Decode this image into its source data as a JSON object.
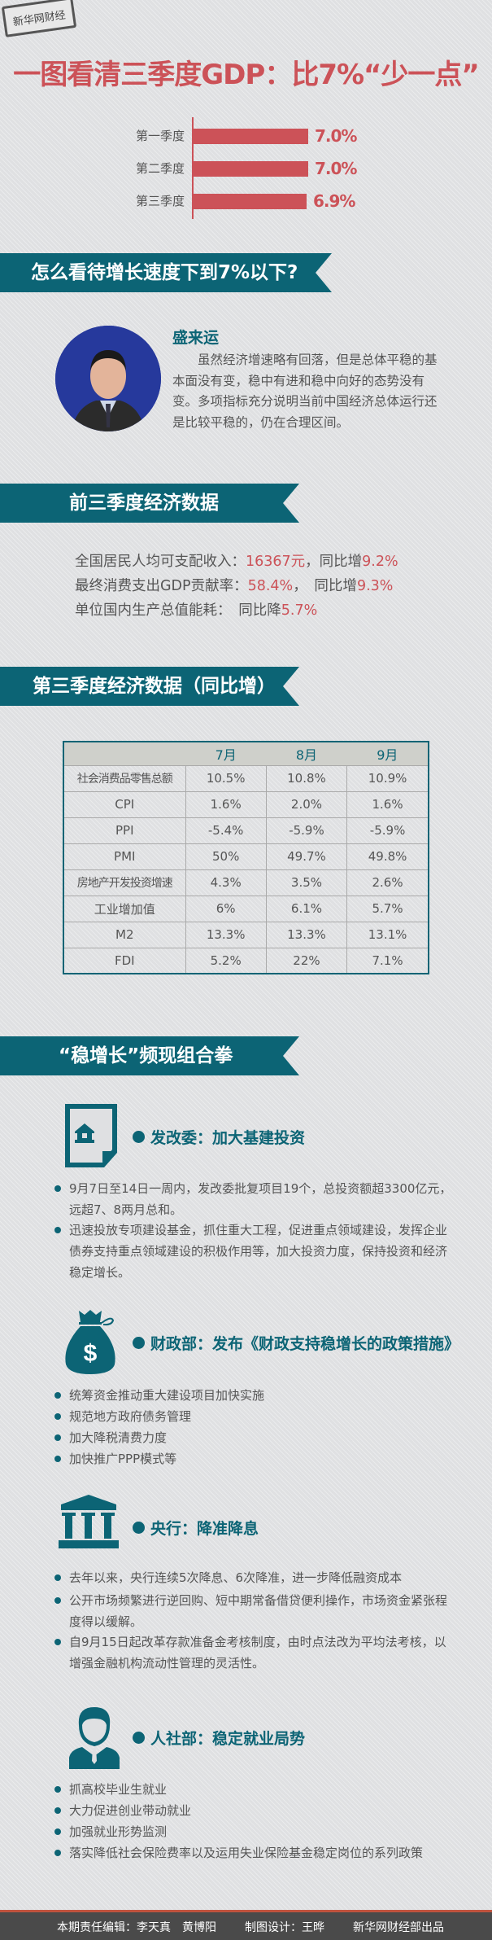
{
  "logo": {
    "text": "新华网财经"
  },
  "title": "一图看清三季度GDP：比7%“少一点”",
  "chart_data": {
    "type": "bar",
    "orientation": "horizontal",
    "categories": [
      "第一季度",
      "第二季度",
      "第三季度"
    ],
    "values": [
      7.0,
      7.0,
      6.9
    ],
    "labels": [
      "7.0%",
      "7.0%",
      "6.9%"
    ],
    "xlim": [
      0,
      7.0
    ],
    "color": "#cc5258"
  },
  "section1": {
    "title": "怎么看待增长速度下到7%以下?",
    "name": "盛来运",
    "text": "虽然经济增速略有回落，但是总体平稳的基本面没有变，稳中有进和稳中向好的态势没有变。多项指标充分说明当前中国经济总体运行还是比较平稳的，仍在合理区间。"
  },
  "section2": {
    "title": "前三季度经济数据",
    "lines": [
      {
        "label": "全国居民人均可支配收入：",
        "v1": "16367元",
        "mid": "，同比增",
        "v2": "9.2%"
      },
      {
        "label": "最终消费支出GDP贡献率：",
        "v1": "58.4%",
        "mid": "，　同比增",
        "v2": "9.3%"
      },
      {
        "label": "单位国内生产总值能耗：",
        "v1": "",
        "mid": "　同比降",
        "v2": "5.7%"
      }
    ]
  },
  "section3": {
    "title": "第三季度经济数据（同比增）",
    "headers": [
      "",
      "7月",
      "8月",
      "9月"
    ],
    "rows": [
      [
        "社会消费品零售总额",
        "10.5%",
        "10.8%",
        "10.9%"
      ],
      [
        "CPI",
        "1.6%",
        "2.0%",
        "1.6%"
      ],
      [
        "PPI",
        "-5.4%",
        "-5.9%",
        "-5.9%"
      ],
      [
        "PMI",
        "50%",
        "49.7%",
        "49.8%"
      ],
      [
        "房地产开发投资增速",
        "4.3%",
        "3.5%",
        "2.6%"
      ],
      [
        "工业增加值",
        "6%",
        "6.1%",
        "5.7%"
      ],
      [
        "M2",
        "13.3%",
        "13.3%",
        "13.1%"
      ],
      [
        "FDI",
        "5.2%",
        "22%",
        "7.1%"
      ]
    ]
  },
  "section4": {
    "title": "“稳增长”频现组合拳",
    "groups": [
      {
        "icon": "document-house-icon",
        "heading": "发改委：加大基建投资",
        "bullets": [
          "9月7日至14日一周内，发改委批复项目19个，总投资额超3300亿元，远超7、8两月总和。",
          "迅速投放专项建设基金，抓住重大工程，促进重点领域建设，发挥企业债券支持重点领域建设的积极作用等，加大投资力度，保持投资和经济稳定增长。"
        ]
      },
      {
        "icon": "money-bag-icon",
        "heading": "财政部：发布《财政支持稳增长的政策措施》",
        "bullets": [
          "统筹资金推动重大建设项目加快实施",
          "规范地方政府债务管理",
          "加大降税清费力度",
          "加快推广PPP模式等"
        ]
      },
      {
        "icon": "bank-icon",
        "heading": "央行：降准降息",
        "bullets": [
          "去年以来，央行连续5次降息、6次降准，进一步降低融资成本",
          "公开市场频繁进行逆回购、短中期常备借贷便利操作，市场资金紧张程度得以缓解。",
          "自9月15日起改革存款准备金考核制度，由时点法改为平均法考核，以增强金融机构流动性管理的灵活性。"
        ]
      },
      {
        "icon": "person-icon",
        "heading": "人社部：稳定就业局势",
        "bullets": [
          "抓高校毕业生就业",
          "大力促进创业带动就业",
          "加强就业形势监测",
          "落实降低社会保险费率以及运用失业保险基金稳定岗位的系列政策"
        ]
      }
    ]
  },
  "footer": {
    "editors": "本期责任编辑：李天真　黄博阳",
    "design": "制图设计：王晔",
    "producer": "新华网财经部出品"
  },
  "colors": {
    "accent": "#0c6475",
    "highlight": "#cc5258"
  }
}
